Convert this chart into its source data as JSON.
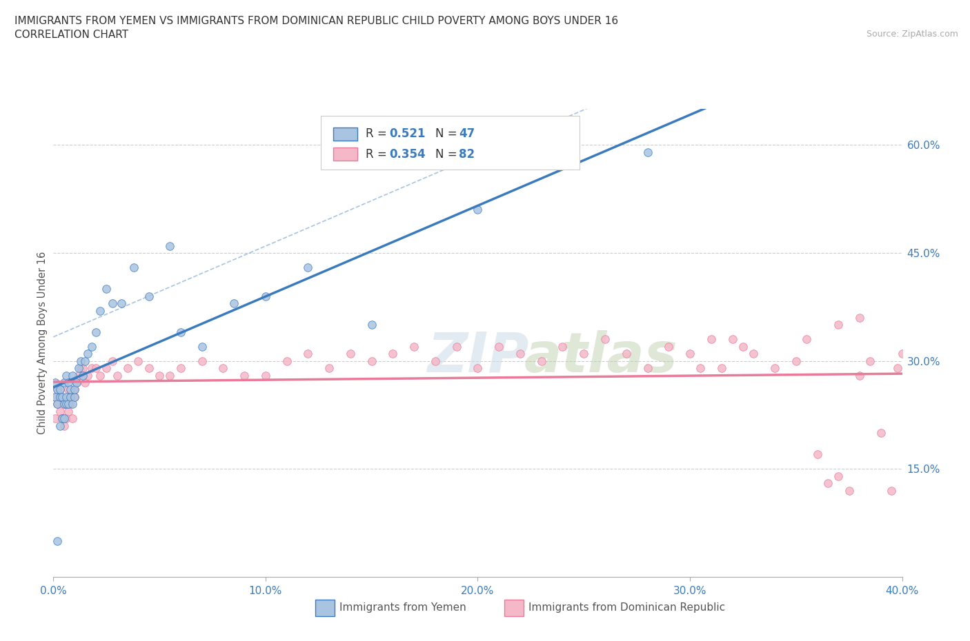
{
  "title_line1": "IMMIGRANTS FROM YEMEN VS IMMIGRANTS FROM DOMINICAN REPUBLIC CHILD POVERTY AMONG BOYS UNDER 16",
  "title_line2": "CORRELATION CHART",
  "source_text": "Source: ZipAtlas.com",
  "ylabel": "Child Poverty Among Boys Under 16",
  "xmin": 0.0,
  "xmax": 0.4,
  "ymin": 0.0,
  "ymax": 0.65,
  "y_tick_labels": [
    "15.0%",
    "30.0%",
    "45.0%",
    "60.0%"
  ],
  "y_tick_values": [
    0.15,
    0.3,
    0.45,
    0.6
  ],
  "x_tick_labels": [
    "0.0%",
    "10.0%",
    "20.0%",
    "30.0%",
    "40.0%"
  ],
  "x_tick_values": [
    0.0,
    0.1,
    0.2,
    0.3,
    0.4
  ],
  "color_yemen": "#a8c4e0",
  "color_dr": "#f4b8c8",
  "color_yemen_line": "#3a7abf",
  "color_dr_line": "#e87a9a",
  "color_text_blue": "#3a7abf",
  "watermark_color": "#c8d8e8",
  "yemen_scatter_x": [
    0.001,
    0.001,
    0.002,
    0.002,
    0.002,
    0.003,
    0.003,
    0.003,
    0.004,
    0.004,
    0.005,
    0.005,
    0.005,
    0.006,
    0.006,
    0.006,
    0.007,
    0.007,
    0.008,
    0.008,
    0.009,
    0.009,
    0.01,
    0.01,
    0.011,
    0.012,
    0.013,
    0.014,
    0.015,
    0.016,
    0.018,
    0.02,
    0.022,
    0.025,
    0.028,
    0.032,
    0.038,
    0.045,
    0.055,
    0.06,
    0.07,
    0.085,
    0.1,
    0.12,
    0.15,
    0.2,
    0.28
  ],
  "yemen_scatter_y": [
    0.25,
    0.27,
    0.24,
    0.26,
    0.05,
    0.25,
    0.26,
    0.21,
    0.25,
    0.22,
    0.24,
    0.27,
    0.22,
    0.24,
    0.28,
    0.25,
    0.24,
    0.27,
    0.25,
    0.26,
    0.24,
    0.28,
    0.25,
    0.26,
    0.27,
    0.29,
    0.3,
    0.28,
    0.3,
    0.31,
    0.32,
    0.34,
    0.37,
    0.4,
    0.38,
    0.38,
    0.43,
    0.39,
    0.46,
    0.34,
    0.32,
    0.38,
    0.39,
    0.43,
    0.35,
    0.51,
    0.59
  ],
  "dr_scatter_x": [
    0.001,
    0.001,
    0.002,
    0.002,
    0.003,
    0.003,
    0.004,
    0.004,
    0.005,
    0.005,
    0.006,
    0.006,
    0.007,
    0.007,
    0.008,
    0.008,
    0.009,
    0.01,
    0.01,
    0.011,
    0.012,
    0.013,
    0.014,
    0.015,
    0.016,
    0.018,
    0.02,
    0.022,
    0.025,
    0.028,
    0.03,
    0.035,
    0.04,
    0.045,
    0.05,
    0.055,
    0.06,
    0.07,
    0.08,
    0.09,
    0.1,
    0.11,
    0.12,
    0.13,
    0.14,
    0.15,
    0.16,
    0.17,
    0.18,
    0.19,
    0.2,
    0.21,
    0.22,
    0.23,
    0.24,
    0.25,
    0.26,
    0.27,
    0.28,
    0.29,
    0.3,
    0.305,
    0.31,
    0.315,
    0.32,
    0.325,
    0.33,
    0.34,
    0.35,
    0.355,
    0.36,
    0.365,
    0.37,
    0.375,
    0.38,
    0.385,
    0.39,
    0.395,
    0.398,
    0.4,
    0.37,
    0.38
  ],
  "dr_scatter_y": [
    0.25,
    0.22,
    0.24,
    0.26,
    0.23,
    0.26,
    0.22,
    0.25,
    0.21,
    0.24,
    0.24,
    0.22,
    0.23,
    0.26,
    0.24,
    0.25,
    0.22,
    0.25,
    0.26,
    0.27,
    0.28,
    0.29,
    0.29,
    0.27,
    0.28,
    0.29,
    0.29,
    0.28,
    0.29,
    0.3,
    0.28,
    0.29,
    0.3,
    0.29,
    0.28,
    0.28,
    0.29,
    0.3,
    0.29,
    0.28,
    0.28,
    0.3,
    0.31,
    0.29,
    0.31,
    0.3,
    0.31,
    0.32,
    0.3,
    0.32,
    0.29,
    0.32,
    0.31,
    0.3,
    0.32,
    0.31,
    0.33,
    0.31,
    0.29,
    0.32,
    0.31,
    0.29,
    0.33,
    0.29,
    0.33,
    0.32,
    0.31,
    0.29,
    0.3,
    0.33,
    0.17,
    0.13,
    0.14,
    0.12,
    0.28,
    0.3,
    0.2,
    0.12,
    0.29,
    0.31,
    0.35,
    0.36
  ]
}
